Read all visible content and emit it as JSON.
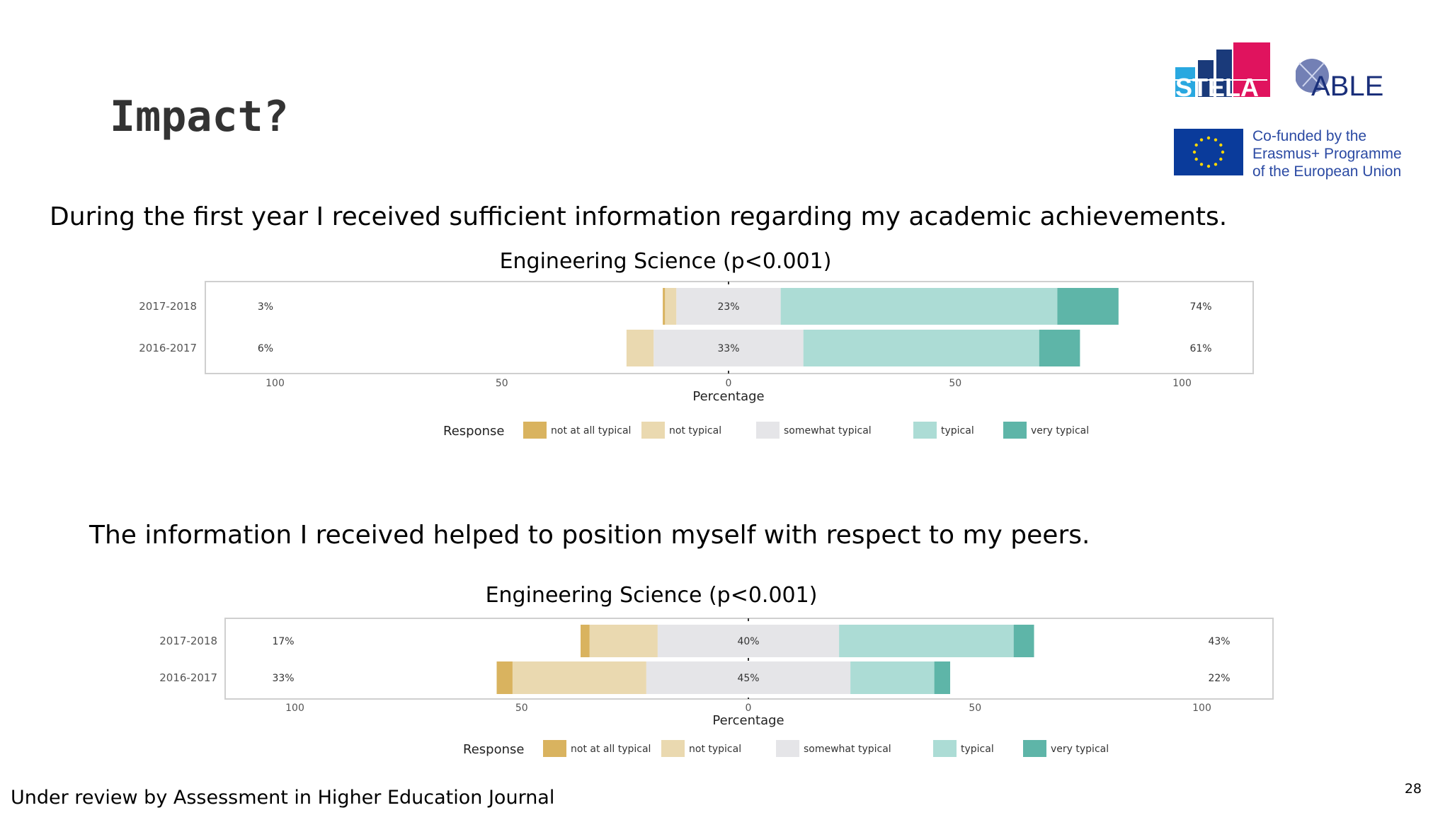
{
  "slide": {
    "title": "Impact?",
    "footer": "Under review by Assessment in Higher Education Journal",
    "page_number": "28"
  },
  "logos": {
    "stela": "STELA",
    "able": "ABLE",
    "eu_text": [
      "Co-funded by the",
      "Erasmus+ Programme",
      "of the European Union"
    ]
  },
  "questions": [
    "During the first year I received sufficient information regarding my academic achievements.",
    "The information I received helped to position myself with respect to my peers."
  ],
  "colors": {
    "not_at_all_typical": "#d9b35f",
    "not_typical": "#ead9b0",
    "somewhat_typical": "#e5e5e8",
    "typical": "#acdcd5",
    "very_typical": "#5eb5a8"
  },
  "chart_data": [
    {
      "type": "bar",
      "subtype": "diverging-stacked",
      "title": "Engineering Science (p<0.001)",
      "xlabel": "Percentage",
      "xlim": [
        -100,
        100
      ],
      "xticks": [
        "100",
        "50",
        "0",
        "50",
        "100"
      ],
      "legend_title": "Response",
      "legend": [
        "not at all typical",
        "not typical",
        "somewhat typical",
        "typical",
        "very typical"
      ],
      "categories": [
        "2017-2018",
        "2016-2017"
      ],
      "series": [
        {
          "name": "not at all typical",
          "values": [
            0.5,
            0
          ]
        },
        {
          "name": "not typical",
          "values": [
            2.5,
            6
          ]
        },
        {
          "name": "somewhat typical",
          "values": [
            23,
            33
          ]
        },
        {
          "name": "typical",
          "values": [
            61,
            52
          ]
        },
        {
          "name": "very typical",
          "values": [
            13.5,
            9
          ]
        }
      ],
      "left_labels": [
        "3%",
        "6%"
      ],
      "center_labels": [
        "23%",
        "33%"
      ],
      "right_labels": [
        "74%",
        "61%"
      ]
    },
    {
      "type": "bar",
      "subtype": "diverging-stacked",
      "title": "Engineering Science (p<0.001)",
      "xlabel": "Percentage",
      "xlim": [
        -100,
        100
      ],
      "xticks": [
        "100",
        "50",
        "0",
        "50",
        "100"
      ],
      "legend_title": "Response",
      "legend": [
        "not at all typical",
        "not typical",
        "somewhat typical",
        "typical",
        "very typical"
      ],
      "categories": [
        "2017-2018",
        "2016-2017"
      ],
      "series": [
        {
          "name": "not at all typical",
          "values": [
            2,
            3.5
          ]
        },
        {
          "name": "not typical",
          "values": [
            15,
            29.5
          ]
        },
        {
          "name": "somewhat typical",
          "values": [
            40,
            45
          ]
        },
        {
          "name": "typical",
          "values": [
            38.5,
            18.5
          ]
        },
        {
          "name": "very typical",
          "values": [
            4.5,
            3.5
          ]
        }
      ],
      "left_labels": [
        "17%",
        "33%"
      ],
      "center_labels": [
        "40%",
        "45%"
      ],
      "right_labels": [
        "43%",
        "22%"
      ]
    }
  ]
}
